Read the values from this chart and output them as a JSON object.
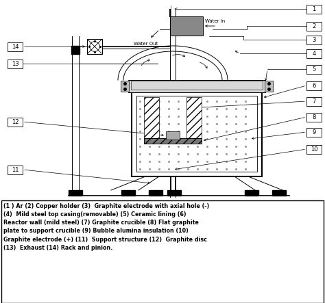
{
  "fig_width": 4.74,
  "fig_height": 4.43,
  "dpi": 100,
  "bg_color": "#ffffff",
  "caption_lines": [
    "(1 ) Ar (2) Copper holder (3)  Graphite electrode with axial hole (-)",
    "(4)  Mild steel top casing(removable) (5) Ceramic lining (6)",
    "Reactor wall (mild steel) (7) Graphite crucible (8) Flat graphite",
    "plate to support crucible (9) Bubble alumina insulation (10)",
    "Graphite electrode (+) (11)  Support structure (12)  Graphite disc",
    "(13)  Exhaust (14) Rack and pinion."
  ]
}
